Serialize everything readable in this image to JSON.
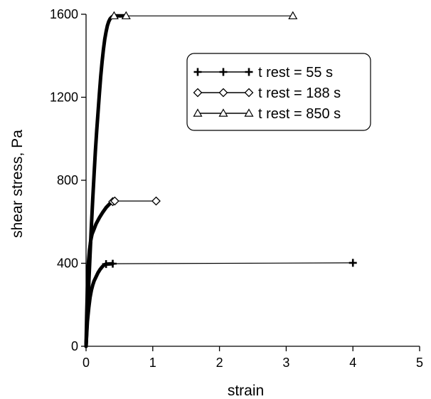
{
  "chart_data": {
    "type": "line",
    "xlabel": "strain",
    "ylabel": "shear stress, Pa",
    "xlim": [
      0,
      5
    ],
    "ylim": [
      0,
      1600
    ],
    "xticks": [
      0,
      1,
      2,
      3,
      4,
      5
    ],
    "yticks": [
      0,
      400,
      800,
      1200,
      1600
    ],
    "grid": false,
    "legend_position": "top-right",
    "series": [
      {
        "name": "t rest = 55 s",
        "marker": "plus",
        "x": [
          0.0,
          0.01,
          0.02,
          0.04,
          0.06,
          0.08,
          0.1,
          0.12,
          0.15,
          0.18,
          0.21,
          0.24,
          0.27,
          0.3,
          0.4,
          4.0
        ],
        "y": [
          0,
          60,
          120,
          185,
          235,
          270,
          295,
          315,
          335,
          355,
          370,
          382,
          392,
          396,
          398,
          402
        ]
      },
      {
        "name": "t rest = 188 s",
        "marker": "diamond",
        "x": [
          0.0,
          0.01,
          0.02,
          0.03,
          0.05,
          0.07,
          0.09,
          0.12,
          0.15,
          0.2,
          0.25,
          0.3,
          0.35,
          0.4,
          0.43,
          1.05
        ],
        "y": [
          0,
          150,
          280,
          380,
          460,
          510,
          540,
          565,
          590,
          620,
          645,
          668,
          685,
          697,
          700,
          700
        ]
      },
      {
        "name": "t rest = 850 s",
        "marker": "triangle",
        "x": [
          0.0,
          0.02,
          0.04,
          0.06,
          0.08,
          0.1,
          0.12,
          0.14,
          0.16,
          0.18,
          0.2,
          0.22,
          0.24,
          0.26,
          0.28,
          0.3,
          0.32,
          0.34,
          0.36,
          0.38,
          0.4,
          0.42,
          0.6,
          3.1
        ],
        "y": [
          0,
          150,
          300,
          440,
          580,
          710,
          830,
          940,
          1040,
          1130,
          1220,
          1300,
          1370,
          1430,
          1480,
          1515,
          1545,
          1565,
          1578,
          1585,
          1590,
          1592,
          1592,
          1592
        ]
      }
    ]
  }
}
